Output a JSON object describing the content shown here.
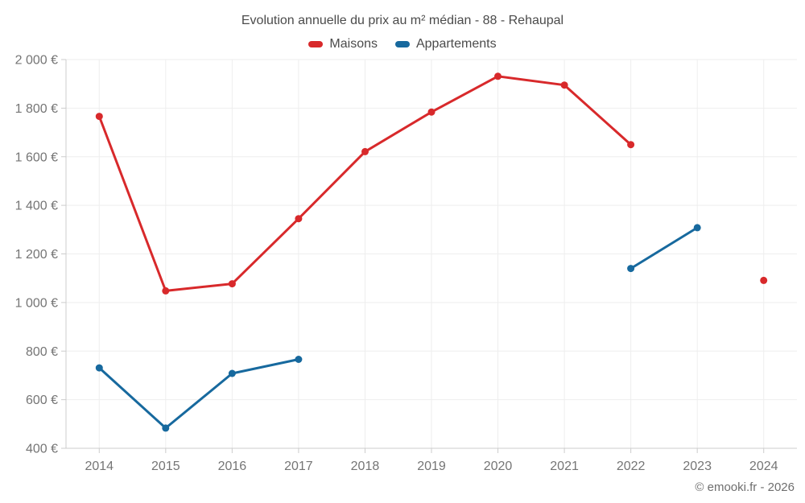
{
  "footer": {
    "credit": "© emooki.fr - 2026"
  },
  "colors": {
    "grid": "#eeeeee",
    "axis": "#cccccc",
    "tick": "#cccccc",
    "label": "#757575",
    "title": "#4b4b4b",
    "maisons": "#d8292b",
    "appartements": "#17699e"
  },
  "chart_data": {
    "type": "line",
    "title": "Evolution annuelle du prix au m² médian - 88 - Rehaupal",
    "xlabel": "",
    "ylabel": "",
    "categories": [
      "2014",
      "2015",
      "2016",
      "2017",
      "2018",
      "2019",
      "2020",
      "2021",
      "2022",
      "2023",
      "2024"
    ],
    "series": [
      {
        "name": "Maisons",
        "color": "#d8292b",
        "values": [
          1766,
          1048,
          1077,
          1345,
          1621,
          1784,
          1931,
          1895,
          1650,
          null,
          1091
        ]
      },
      {
        "name": "Appartements",
        "color": "#17699e",
        "values": [
          731,
          483,
          708,
          766,
          null,
          null,
          null,
          null,
          1140,
          1308,
          null
        ]
      }
    ],
    "ylim": [
      400,
      2000
    ],
    "yticks": [
      {
        "value": 400,
        "label": "400 €"
      },
      {
        "value": 600,
        "label": "600 €"
      },
      {
        "value": 800,
        "label": "800 €"
      },
      {
        "value": 1000,
        "label": "1 000 €"
      },
      {
        "value": 1200,
        "label": "1 200 €"
      },
      {
        "value": 1400,
        "label": "1 400 €"
      },
      {
        "value": 1600,
        "label": "1 600 €"
      },
      {
        "value": 1800,
        "label": "1 800 €"
      },
      {
        "value": 2000,
        "label": "2 000 €"
      }
    ],
    "grid": true,
    "legend_position": "top",
    "units": "€ / m²"
  }
}
